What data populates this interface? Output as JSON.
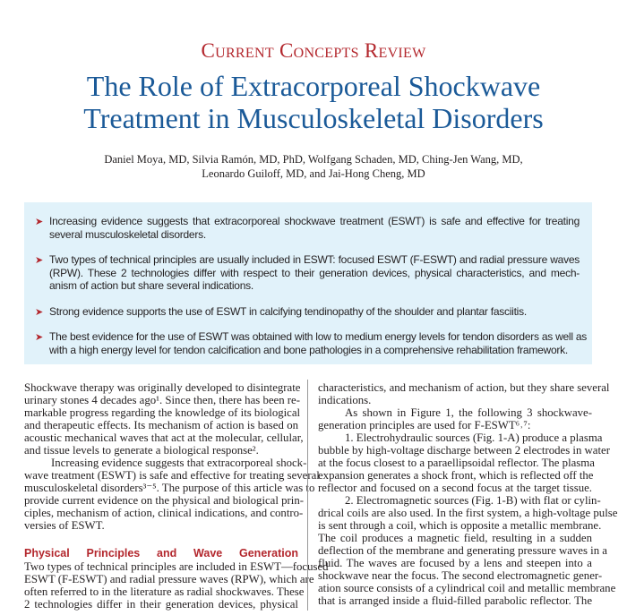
{
  "header": {
    "kicker": "Current Concepts Review",
    "title_lines": [
      "The Role of Extracorporeal Shockwave",
      "Treatment in Musculoskeletal Disorders"
    ],
    "author_lines": [
      "Daniel Moya, MD, Silvia Ramón, MD, PhD, Wolfgang Schaden, MD, Ching-Jen Wang, MD,",
      "Leonardo Guiloff, MD, and Jai-Hong Cheng, MD"
    ]
  },
  "key_points": {
    "bullet_icon": "red-arrowhead",
    "accent": "#b3272d",
    "background": "#e1f2fa",
    "items": [
      {
        "lines": [
          "Increasing evidence suggests that extracorporeal shockwave treatment (ESWT) is safe and effective for treating",
          "several musculoskeletal disorders."
        ]
      },
      {
        "lines": [
          "Two types of technical principles are usually included in ESWT: focused ESWT (F-ESWT) and radial pressure waves",
          "(RPW). These 2 technologies differ with respect to their generation devices, physical characteristics, and mech-",
          "anism of action but share several indications."
        ]
      },
      {
        "lines": [
          "Strong evidence supports the use of ESWT in calcifying tendinopathy of the shoulder and plantar fasciitis."
        ]
      },
      {
        "lines": [
          "The best evidence for the use of ESWT was obtained with low to medium energy levels for tendon disorders as well as",
          "with a high energy level for tendon calcification and bone pathologies in a comprehensive rehabilitation framework."
        ]
      }
    ]
  },
  "body": {
    "left": [
      {
        "t": "Shockwave therapy was originally developed to disintegrate"
      },
      {
        "t": "urinary stones 4 decades ago¹. Since then, there has been re-"
      },
      {
        "t": "markable progress regarding the knowledge of its biological"
      },
      {
        "t": "and therapeutic effects. Its mechanism of action is based on"
      },
      {
        "t": "acoustic mechanical waves that act at the molecular, cellular,"
      },
      {
        "t": "and tissue levels to generate a biological response².",
        "k": "last"
      },
      {
        "t": "Increasing evidence suggests that extracorporeal shock-",
        "k": "ind"
      },
      {
        "t": "wave treatment (ESWT) is safe and effective for treating several"
      },
      {
        "t": "musculoskeletal disorders³⁻⁵. The purpose of this article was to"
      },
      {
        "t": "provide current evidence on the physical and biological prin-"
      },
      {
        "t": "ciples, mechanism of action, clinical indications, and contro-"
      },
      {
        "t": "versies of ESWT.",
        "k": "last"
      },
      {
        "t": "",
        "k": "blank"
      },
      {
        "t": "Physical Principles and Wave Generation",
        "k": "h"
      },
      {
        "t": "Two types of technical principles are included in ESWT—focused"
      },
      {
        "t": "ESWT (F-ESWT) and radial pressure waves (RPW), which are"
      },
      {
        "t": "often referred to in the literature as radial shockwaves. These"
      },
      {
        "t": "2 technologies differ in their generation devices, physical"
      }
    ],
    "right": [
      {
        "t": "characteristics, and mechanism of action, but they share several"
      },
      {
        "t": "indications.",
        "k": "last"
      },
      {
        "t": "As shown in Figure 1, the following 3 shockwave-",
        "k": "ind"
      },
      {
        "t": "generation principles are used for F-ESWT⁶˒⁷:",
        "k": "last"
      },
      {
        "t": "1. Electrohydraulic sources (Fig. 1-A) produce a plasma",
        "k": "ind"
      },
      {
        "t": "bubble by high-voltage discharge between 2 electrodes in water"
      },
      {
        "t": "at the focus closest to a paraellipsoidal reflector. The plasma"
      },
      {
        "t": "expansion generates a shock front, which is reflected off the"
      },
      {
        "t": "reflector and focused on a second focus at the target tissue."
      },
      {
        "t": "2. Electromagnetic sources (Fig. 1-B) with flat or cylin-",
        "k": "ind"
      },
      {
        "t": "drical coils are also used. In the first system, a high-voltage pulse"
      },
      {
        "t": "is sent through a coil, which is opposite a metallic membrane."
      },
      {
        "t": "The coil produces a magnetic field, resulting in a sudden"
      },
      {
        "t": "deflection of the membrane and generating pressure waves in a"
      },
      {
        "t": "fluid. The waves are focused by a lens and steepen into a"
      },
      {
        "t": "shockwave near the focus. The second electromagnetic gener-"
      },
      {
        "t": "ation source consists of a cylindrical coil and metallic membrane"
      },
      {
        "t": "that is arranged inside a fluid-filled parabolic reflector. The"
      }
    ]
  }
}
